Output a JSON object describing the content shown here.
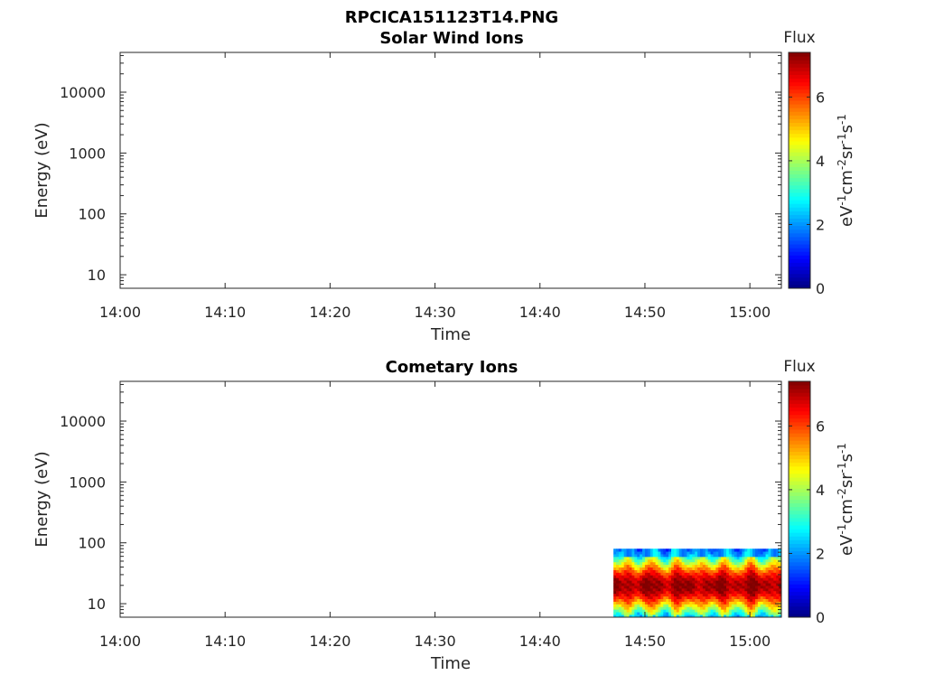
{
  "figure": {
    "title": "RPCICA151123T14.PNG"
  },
  "chart_data": [
    {
      "type": "heatmap",
      "title": "Solar Wind Ions",
      "xlabel": "Time",
      "ylabel": "Energy (eV)",
      "x_ticks": [
        "14:00",
        "14:10",
        "14:20",
        "14:30",
        "14:40",
        "14:50",
        "15:00"
      ],
      "xlim": [
        "14:00",
        "15:03"
      ],
      "y_scale": "log",
      "y_ticks": [
        "10",
        "10000",
        "1000",
        "100"
      ],
      "y_tick_values": [
        10,
        10000,
        1000,
        100
      ],
      "ylim": [
        6,
        45000
      ],
      "colorbar": {
        "label": "Flux",
        "units": "eV-1cm-2sr-1s-1",
        "units_base": [
          "eV",
          "cm",
          "sr",
          "s"
        ],
        "units_exp": [
          "-1",
          "-2",
          "-1",
          "-1"
        ],
        "ticks": [
          "0",
          "2",
          "4",
          "6"
        ],
        "tick_values": [
          0,
          2,
          4,
          6
        ],
        "range": [
          0,
          7.4
        ],
        "colormap": "jet"
      },
      "regions": []
    },
    {
      "type": "heatmap",
      "title": "Cometary Ions",
      "xlabel": "Time",
      "ylabel": "Energy (eV)",
      "x_ticks": [
        "14:00",
        "14:10",
        "14:20",
        "14:30",
        "14:40",
        "14:50",
        "15:00"
      ],
      "xlim": [
        "14:00",
        "15:03"
      ],
      "y_scale": "log",
      "y_ticks": [
        "10",
        "10000",
        "1000",
        "100"
      ],
      "y_tick_values": [
        10,
        10000,
        1000,
        100
      ],
      "ylim": [
        6,
        45000
      ],
      "colorbar": {
        "label": "Flux",
        "units": "eV-1cm-2sr-1s-1",
        "units_base": [
          "eV",
          "cm",
          "sr",
          "s"
        ],
        "units_exp": [
          "-1",
          "-2",
          "-1",
          "-1"
        ],
        "ticks": [
          "0",
          "2",
          "4",
          "6"
        ],
        "tick_values": [
          0,
          2,
          4,
          6
        ],
        "range": [
          0,
          7.4
        ],
        "colormap": "jet"
      },
      "regions": [
        {
          "description": "high flux band",
          "t_start": "14:47",
          "t_end": "15:03",
          "e_min": 6,
          "e_max": 80,
          "peak_energy": 20,
          "peak_flux": 7.2
        }
      ]
    }
  ]
}
